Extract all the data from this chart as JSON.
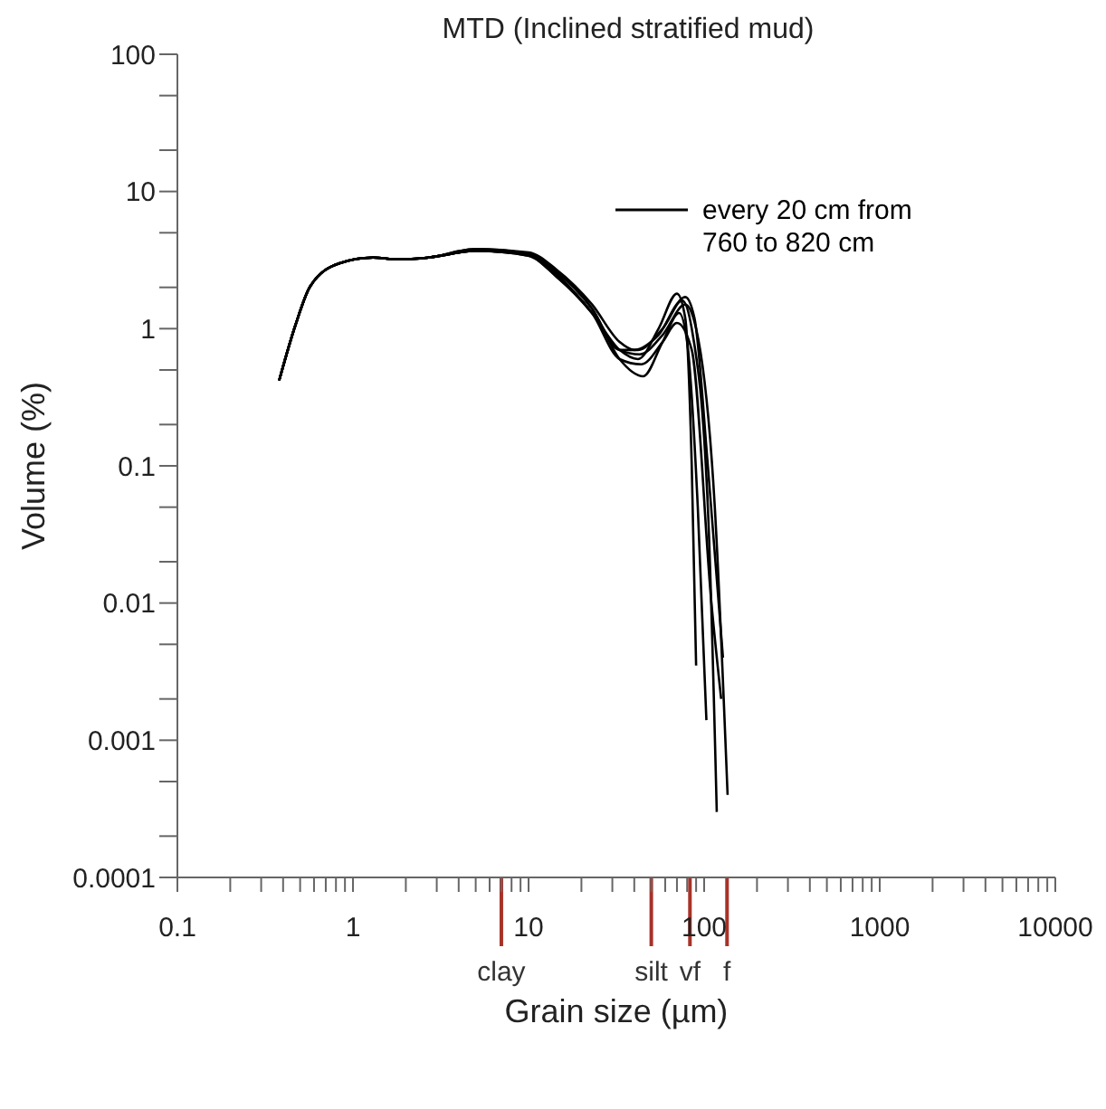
{
  "chart_data": {
    "type": "line",
    "title": "MTD (Inclined stratified mud)",
    "xlabel": "Grain size (µm)",
    "ylabel": "Volume (%)",
    "log": "xy",
    "grid": false,
    "legend": "top right",
    "xlim": [
      0.1,
      10000
    ],
    "ylim": [
      0.0001,
      100
    ],
    "xticks": [
      0.1,
      {
        "value": 0.2,
        "label": null
      },
      {
        "value": 0.3,
        "label": null
      },
      {
        "value": 0.4,
        "label": null
      },
      {
        "value": 0.5,
        "label": null
      },
      {
        "value": 0.6,
        "label": null
      },
      {
        "value": 0.7,
        "label": null
      },
      {
        "value": 0.8,
        "label": null
      },
      {
        "value": 0.9,
        "label": null
      },
      1,
      {
        "value": 2,
        "label": null
      },
      {
        "value": 3,
        "label": null
      },
      {
        "value": 4,
        "label": null
      },
      {
        "value": 5,
        "label": null
      },
      {
        "value": 6,
        "label": null
      },
      {
        "value": 7,
        "label": null
      },
      {
        "value": 8,
        "label": null
      },
      {
        "value": 9,
        "label": null
      },
      10,
      {
        "value": 20,
        "label": null
      },
      {
        "value": 30,
        "label": null
      },
      {
        "value": 40,
        "label": null
      },
      {
        "value": 50,
        "label": null
      },
      {
        "value": 60,
        "label": null
      },
      {
        "value": 70,
        "label": null
      },
      {
        "value": 80,
        "label": null
      },
      {
        "value": 90,
        "label": null
      },
      100,
      {
        "value": 200,
        "label": null
      },
      {
        "value": 300,
        "label": null
      },
      {
        "value": 400,
        "label": null
      },
      {
        "value": 500,
        "label": null
      },
      {
        "value": 600,
        "label": null
      },
      {
        "value": 700,
        "label": null
      },
      {
        "value": 800,
        "label": null
      },
      {
        "value": 900,
        "label": null
      },
      1000,
      {
        "value": 2000,
        "label": null
      },
      {
        "value": 3000,
        "label": null
      },
      {
        "value": 4000,
        "label": null
      },
      {
        "value": 5000,
        "label": null
      },
      {
        "value": 6000,
        "label": null
      },
      {
        "value": 7000,
        "label": null
      },
      {
        "value": 8000,
        "label": null
      },
      {
        "value": 9000,
        "label": null
      },
      10000
    ],
    "yticks": [
      0.0001,
      {
        "value": 0.0002,
        "label": null
      },
      {
        "value": 0.0005,
        "label": null
      },
      0.001,
      {
        "value": 0.002,
        "label": null
      },
      {
        "value": 0.005,
        "label": null
      },
      0.01,
      {
        "value": 0.02,
        "label": null
      },
      {
        "value": 0.05,
        "label": null
      },
      0.1,
      {
        "value": 0.2,
        "label": null
      },
      {
        "value": 0.5,
        "label": null
      },
      1,
      {
        "value": 2,
        "label": null
      },
      {
        "value": 5,
        "label": null
      },
      10,
      {
        "value": 20,
        "label": null
      },
      {
        "value": 50,
        "label": null
      },
      100
    ],
    "ref_lines": [
      {
        "axis": "x",
        "value": 7,
        "label": "clay",
        "color": "#a83228"
      },
      {
        "axis": "x",
        "value": 50,
        "label": "silt",
        "color": "#a83228"
      },
      {
        "axis": "x",
        "value": 83,
        "label": "vf",
        "color": "#a83228"
      },
      {
        "axis": "x",
        "value": 135,
        "label": "f",
        "color": "#a83228"
      }
    ],
    "series": [
      {
        "name": "every 20 cm from 760 to 820 cm",
        "color": "#000000",
        "x": [
          0.38,
          0.47,
          0.57,
          0.84,
          1.3,
          1.8,
          2.7,
          5,
          10,
          14.4,
          23,
          33,
          42,
          55,
          70,
          78,
          85,
          90
        ],
        "values": [
          0.42,
          1.06,
          2.03,
          3.0,
          3.3,
          3.2,
          3.3,
          3.7,
          3.4,
          2.4,
          1.3,
          0.7,
          0.6,
          1.0,
          1.8,
          1.2,
          0.1,
          0.0035
        ]
      },
      {
        "color": "#000000",
        "x": [
          0.38,
          0.47,
          0.57,
          0.84,
          1.3,
          1.8,
          2.7,
          5,
          10,
          14.4,
          23,
          33,
          45,
          58,
          72,
          80,
          92,
          103
        ],
        "values": [
          0.42,
          1.06,
          2.03,
          3.0,
          3.3,
          3.2,
          3.3,
          3.7,
          3.5,
          2.6,
          1.4,
          0.6,
          0.45,
          0.8,
          1.3,
          0.8,
          0.05,
          0.0014
        ]
      },
      {
        "color": "#000000",
        "x": [
          0.38,
          0.47,
          0.57,
          0.84,
          1.3,
          1.8,
          2.7,
          5,
          10,
          14.4,
          23,
          33,
          40,
          55,
          75,
          85,
          105,
          118
        ],
        "values": [
          0.42,
          1.06,
          2.03,
          3.0,
          3.3,
          3.2,
          3.3,
          3.8,
          3.6,
          2.7,
          1.5,
          0.8,
          0.7,
          0.9,
          1.6,
          1.0,
          0.05,
          0.0003
        ]
      },
      {
        "color": "#000000",
        "x": [
          0.38,
          0.47,
          0.57,
          0.84,
          1.3,
          1.8,
          2.7,
          5,
          10,
          14.4,
          23,
          33,
          43,
          58,
          78,
          90,
          115,
          136
        ],
        "values": [
          0.42,
          1.06,
          2.03,
          3.0,
          3.3,
          3.2,
          3.3,
          3.7,
          3.5,
          2.5,
          1.3,
          0.7,
          0.65,
          0.9,
          1.5,
          1.0,
          0.05,
          0.0004
        ]
      },
      {
        "color": "#000000",
        "x": [
          0.38,
          0.47,
          0.57,
          0.84,
          1.3,
          1.8,
          2.7,
          5,
          10,
          14.4,
          23,
          33,
          44,
          58,
          70,
          85,
          110,
          125
        ],
        "values": [
          0.42,
          1.06,
          2.03,
          3.0,
          3.3,
          3.2,
          3.3,
          3.7,
          3.4,
          2.4,
          1.3,
          0.6,
          0.55,
          0.8,
          1.1,
          0.7,
          0.01,
          0.002
        ]
      },
      {
        "color": "#000000",
        "x": [
          0.38,
          0.47,
          0.57,
          0.84,
          1.3,
          1.8,
          2.7,
          5,
          10,
          14.4,
          23,
          33,
          42,
          58,
          78,
          88,
          105,
          128
        ],
        "values": [
          0.42,
          1.06,
          2.03,
          3.0,
          3.3,
          3.2,
          3.3,
          3.8,
          3.5,
          2.6,
          1.4,
          0.7,
          0.7,
          1.0,
          1.7,
          1.2,
          0.1,
          0.004
        ]
      }
    ]
  }
}
